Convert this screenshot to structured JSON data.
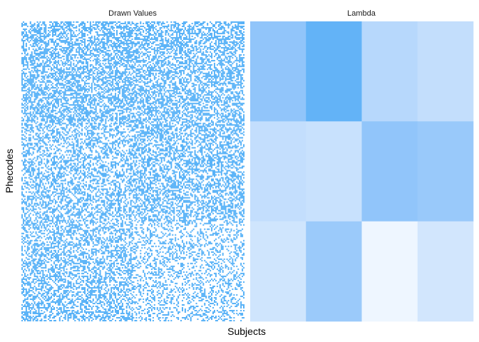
{
  "chart_data": {
    "type": "heatmap",
    "xlabel": "Subjects",
    "ylabel": "Phecodes",
    "panels": [
      {
        "title": "Drawn Values",
        "kind": "binary",
        "n_cols": 160,
        "n_rows": 210,
        "color_on": "#56b1f7",
        "color_off": "#ffffff",
        "blocks": [
          {
            "rows": [
              0,
              70
            ],
            "cols": [
              0,
              80
            ],
            "density": 0.55
          },
          {
            "rows": [
              0,
              70
            ],
            "cols": [
              80,
              160
            ],
            "density": 0.5
          },
          {
            "rows": [
              70,
              140
            ],
            "cols": [
              0,
              80
            ],
            "density": 0.42
          },
          {
            "rows": [
              70,
              140
            ],
            "cols": [
              80,
              160
            ],
            "density": 0.48
          },
          {
            "rows": [
              140,
              210
            ],
            "cols": [
              0,
              80
            ],
            "density": 0.45
          },
          {
            "rows": [
              140,
              210
            ],
            "cols": [
              80,
              160
            ],
            "density": 0.3
          }
        ]
      },
      {
        "title": "Lambda",
        "kind": "continuous",
        "columns": 4,
        "rows": 3,
        "fills": [
          [
            "#91c5fa",
            "#63b3f7",
            "#b7d8fc",
            "#c3defc"
          ],
          [
            "#c3defd",
            "#c8e1fd",
            "#91c5fa",
            "#99c9fa"
          ],
          [
            "#cfe5fd",
            "#9bcafa",
            "#eef6ff",
            "#d2e6fd"
          ]
        ]
      }
    ]
  }
}
